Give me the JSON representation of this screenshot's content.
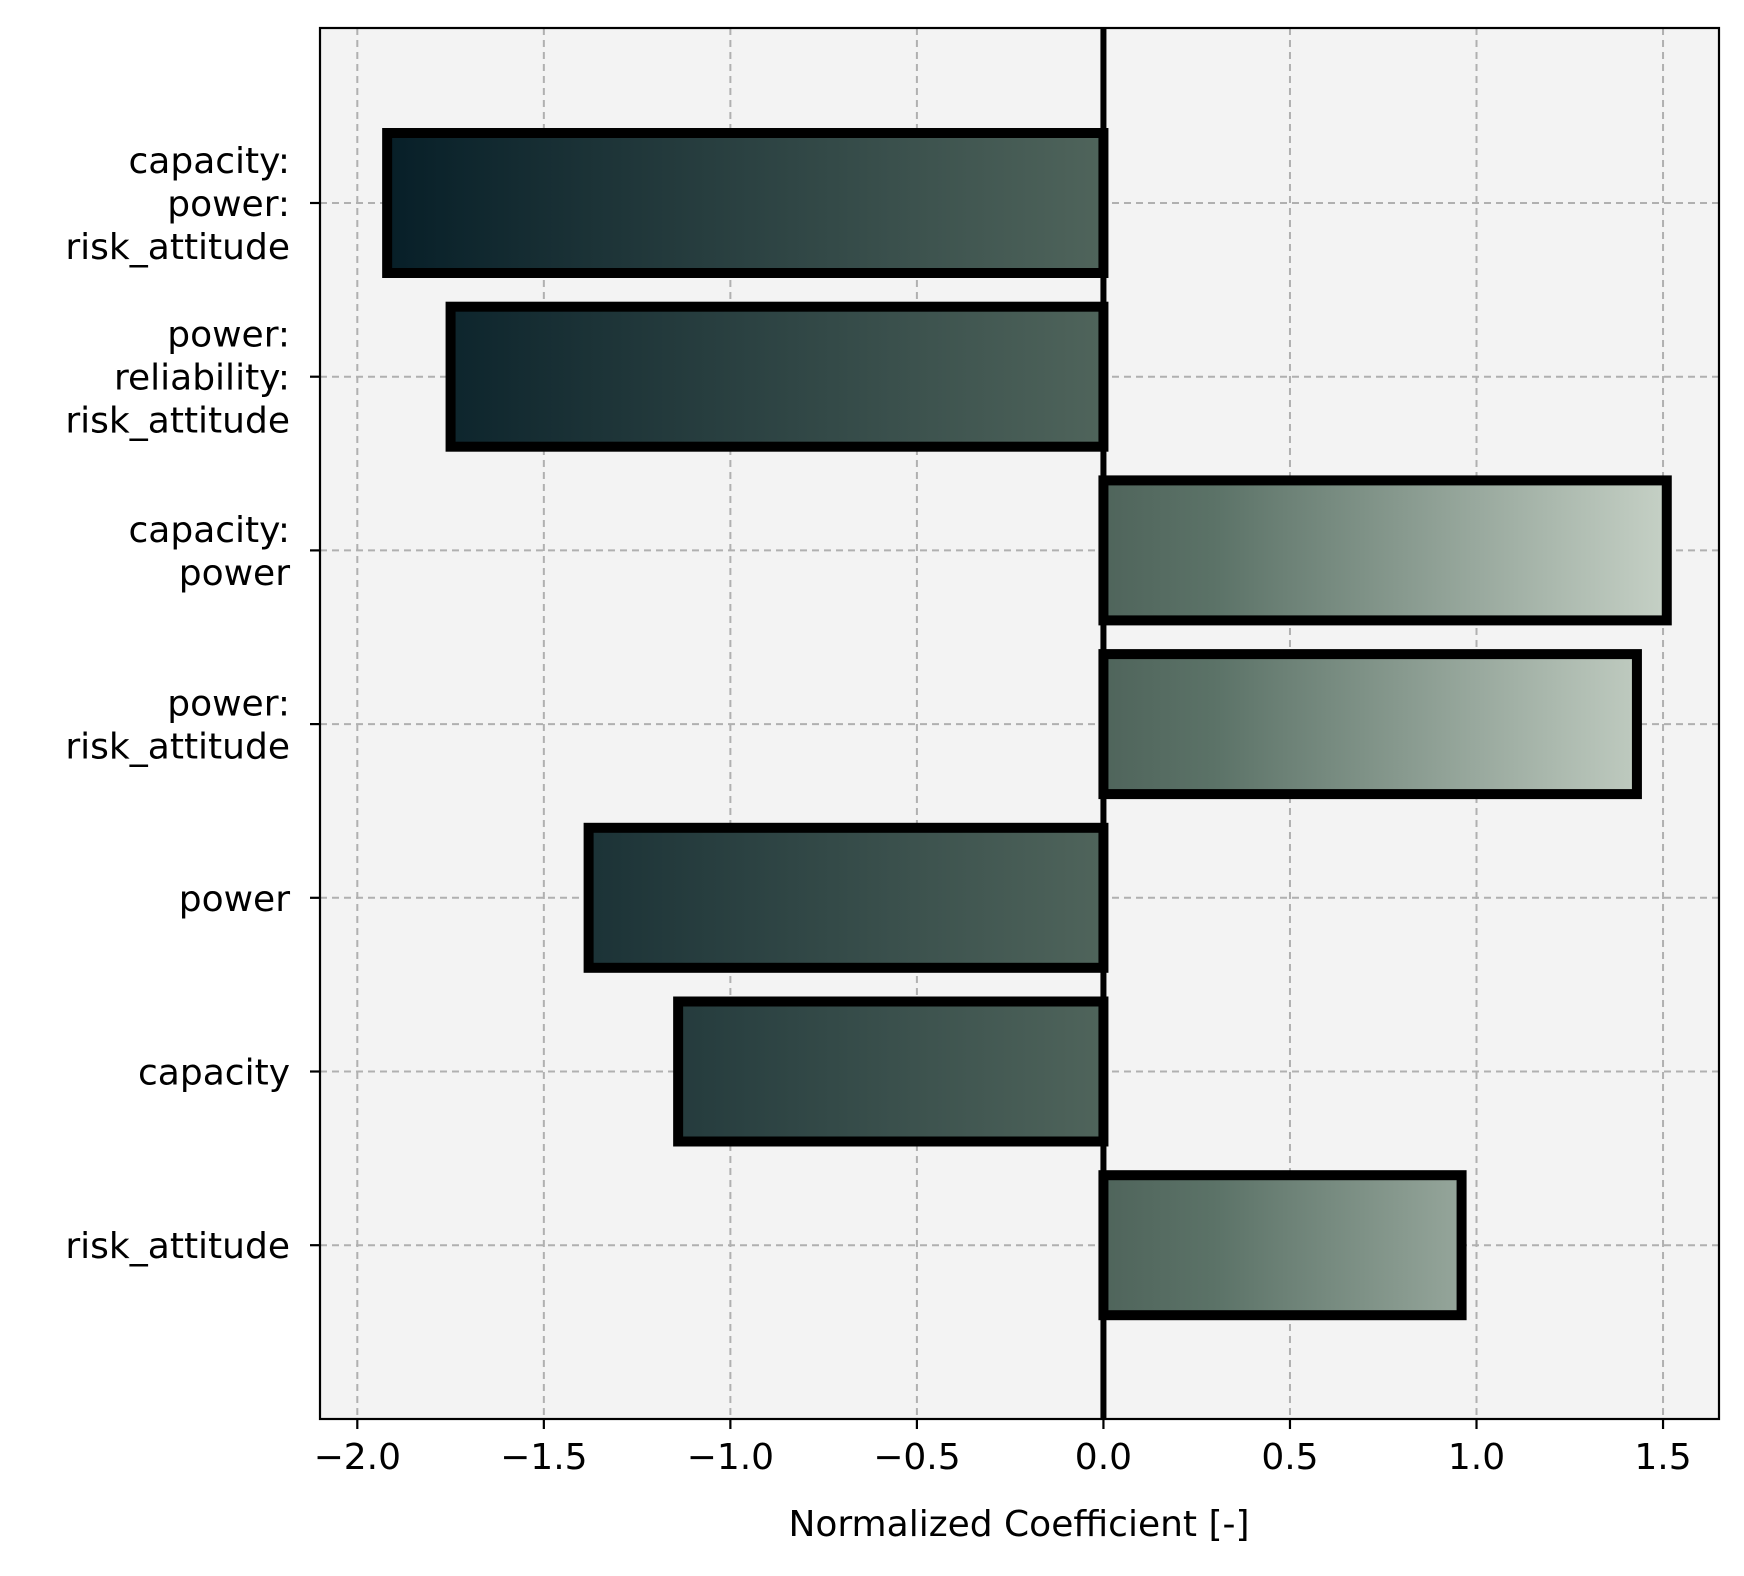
{
  "chart_data": {
    "type": "bar",
    "orientation": "horizontal",
    "title": "",
    "xlabel": "Normalized Coefficient [-]",
    "ylabel": "",
    "xlim": [
      -2.1,
      1.65
    ],
    "xticks": [
      -2.0,
      -1.5,
      -1.0,
      -0.5,
      0.0,
      0.5,
      1.0,
      1.5
    ],
    "xtick_labels": [
      "−2.0",
      "−1.5",
      "−1.0",
      "−0.5",
      "0.0",
      "0.5",
      "1.0",
      "1.5"
    ],
    "grid": true,
    "categories": [
      "capacity:\npower:\nrisk_attitude",
      "power:\nreliability:\nrisk_attitude",
      "capacity:\npower",
      "power:\nrisk_attitude",
      "power",
      "capacity",
      "risk_attitude"
    ],
    "values": [
      -1.92,
      -1.75,
      1.51,
      1.43,
      -1.38,
      -1.14,
      0.96
    ],
    "colors": {
      "background": "#f3f3f3",
      "grid": "#b0b0b0",
      "bar_edge": "#000000",
      "gradient_dark": "#041c26",
      "gradient_mid": "#4f645b",
      "gradient_light": "#c5d0c5"
    }
  }
}
